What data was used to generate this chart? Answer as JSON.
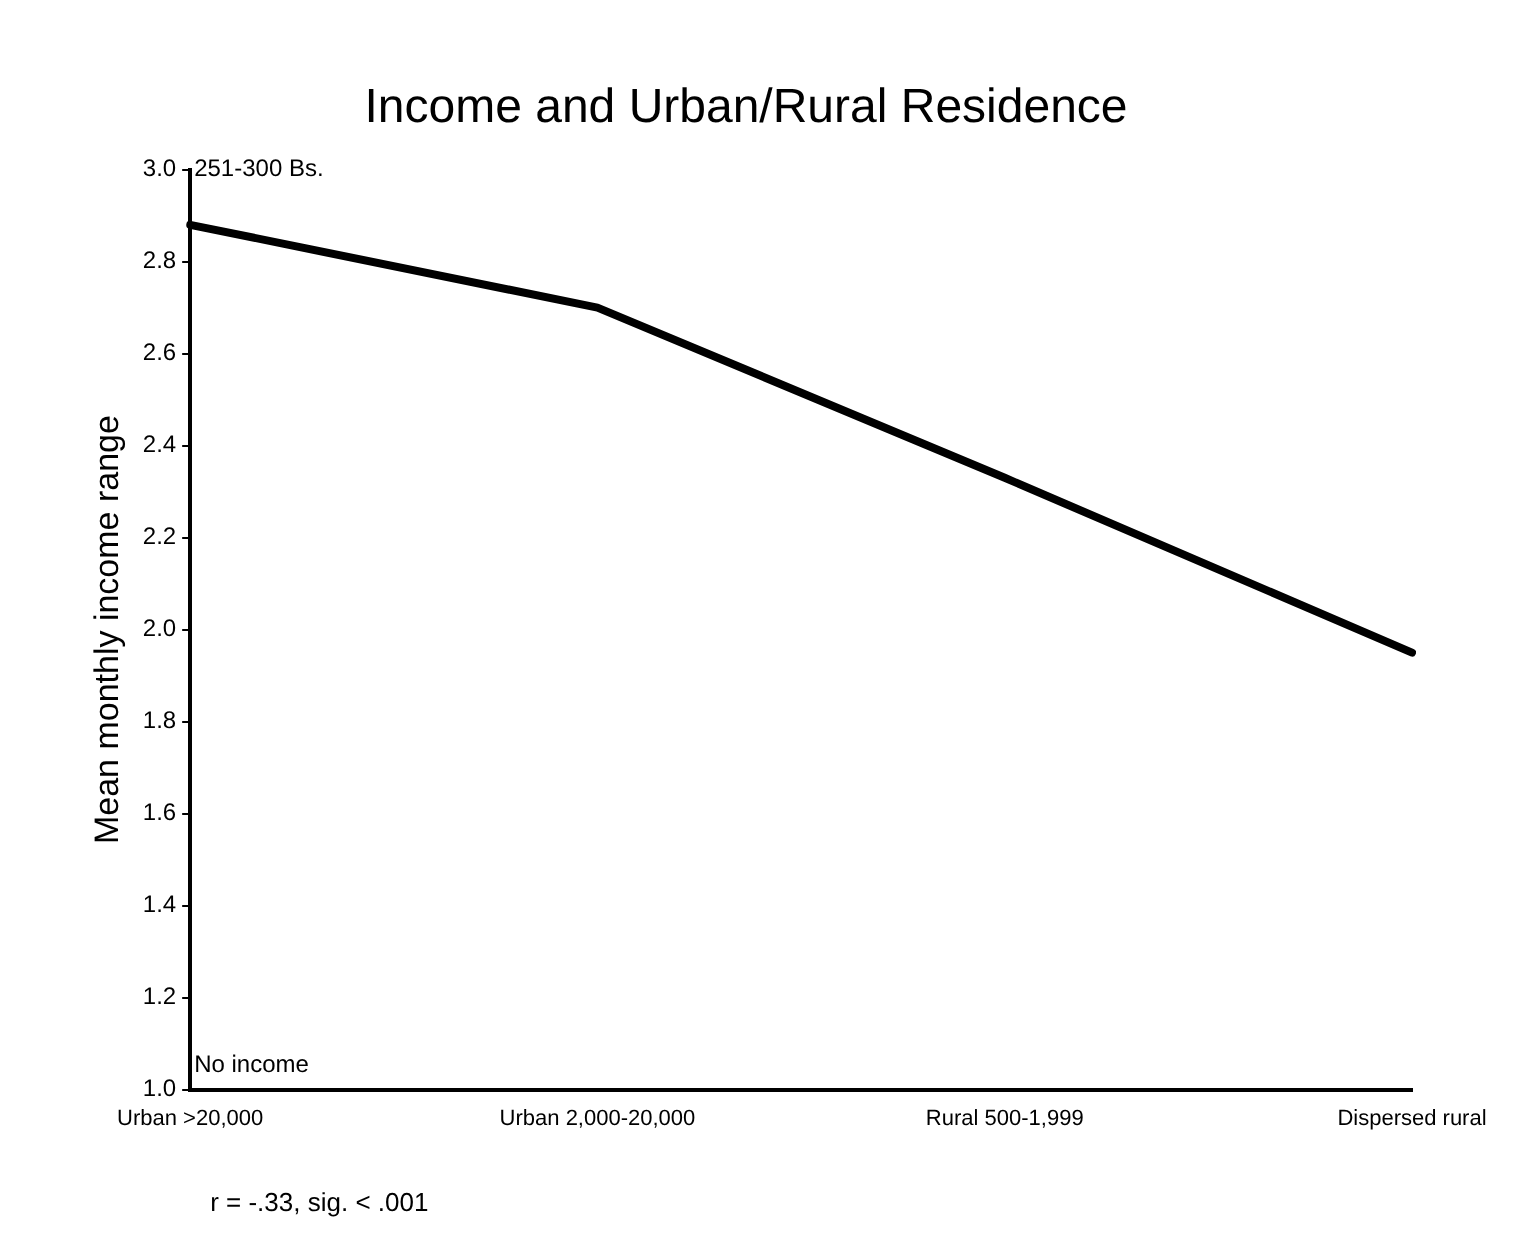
{
  "chart_data": {
    "type": "line",
    "title": "Income and Urban/Rural Residence",
    "ylabel": "Mean monthly income range",
    "categories": [
      "Urban >20,000",
      "Urban 2,000-20,000",
      "Rural 500-1,999",
      "Dispersed rural"
    ],
    "series": [
      {
        "color": "#000000",
        "values": [
          2.88,
          2.7,
          2.33,
          1.95
        ]
      }
    ],
    "ylim": [
      1.0,
      3.0
    ],
    "yticks": [
      {
        "value": 1.0,
        "label": "1.0"
      },
      {
        "value": 1.2,
        "label": "1.2"
      },
      {
        "value": 1.4,
        "label": "1.4"
      },
      {
        "value": 1.6,
        "label": "1.6"
      },
      {
        "value": 1.8,
        "label": "1.8"
      },
      {
        "value": 2.0,
        "label": "2.0"
      },
      {
        "value": 2.2,
        "label": "2.2"
      },
      {
        "value": 2.4,
        "label": "2.4"
      },
      {
        "value": 2.6,
        "label": "2.6"
      },
      {
        "value": 2.8,
        "label": "2.8"
      },
      {
        "value": 3.0,
        "label": "3.0"
      }
    ],
    "annotations": [
      "251-300 Bs.",
      "No income",
      "r = -.33, sig. < .001"
    ],
    "grid": false,
    "legend": false,
    "marker": "none",
    "line_style": "solid"
  }
}
